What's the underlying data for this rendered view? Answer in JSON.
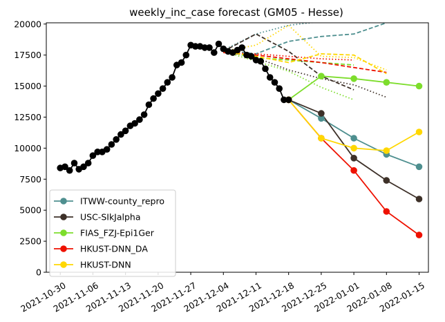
{
  "chart_data": {
    "type": "line",
    "title": "weekly_inc_case forecast (GM05 - Hesse)",
    "xlabel": "",
    "ylabel": "",
    "x_range": [
      "2021-10-27",
      "2022-01-17"
    ],
    "ylim": [
      0,
      20100
    ],
    "y_ticks": [
      0,
      2500,
      5000,
      7500,
      10000,
      12500,
      15000,
      17500,
      20000
    ],
    "y_tick_labels": [
      "0",
      "2500",
      "5000",
      "7500",
      "10000",
      "12500",
      "15000",
      "17500",
      "20000"
    ],
    "x_ticks": [
      "2021-10-30",
      "2021-11-06",
      "2021-11-13",
      "2021-11-20",
      "2021-11-27",
      "2021-12-04",
      "2021-12-11",
      "2021-12-18",
      "2021-12-25",
      "2022-01-01",
      "2022-01-08",
      "2022-01-15"
    ],
    "x_tick_labels": [
      "2021-10-30",
      "2021-11-06",
      "2021-11-13",
      "2021-11-20",
      "2021-11-27",
      "2021-12-04",
      "2021-12-11",
      "2021-12-18",
      "2021-12-25",
      "2022-01-01",
      "2022-01-08",
      "2022-01-15"
    ],
    "grid": false,
    "legend": {
      "position": "bottom-left",
      "entries": [
        "ITWW-county_repro",
        "USC-SIkJalpha",
        "FIAS_FZJ-Epi1Ger",
        "HKUST-DNN_DA",
        "HKUST-DNN"
      ]
    },
    "observed": {
      "color": "#000000",
      "x": [
        "2021-10-30",
        "2021-10-31",
        "2021-11-01",
        "2021-11-02",
        "2021-11-03",
        "2021-11-04",
        "2021-11-05",
        "2021-11-06",
        "2021-11-07",
        "2021-11-08",
        "2021-11-09",
        "2021-11-10",
        "2021-11-11",
        "2021-11-12",
        "2021-11-13",
        "2021-11-14",
        "2021-11-15",
        "2021-11-16",
        "2021-11-17",
        "2021-11-18",
        "2021-11-19",
        "2021-11-20",
        "2021-11-21",
        "2021-11-22",
        "2021-11-23",
        "2021-11-24",
        "2021-11-25",
        "2021-11-26",
        "2021-11-27",
        "2021-11-28",
        "2021-11-29",
        "2021-11-30",
        "2021-12-01",
        "2021-12-02",
        "2021-12-03",
        "2021-12-04",
        "2021-12-05",
        "2021-12-06",
        "2021-12-07",
        "2021-12-08",
        "2021-12-09",
        "2021-12-10",
        "2021-12-11",
        "2021-12-12",
        "2021-12-13",
        "2021-12-14",
        "2021-12-15",
        "2021-12-16",
        "2021-12-17",
        "2021-12-18"
      ],
      "y": [
        8400,
        8500,
        8200,
        8800,
        8300,
        8500,
        8800,
        9400,
        9700,
        9700,
        9900,
        10300,
        10700,
        11100,
        11400,
        11800,
        12000,
        12300,
        12700,
        13500,
        14000,
        14400,
        14800,
        15300,
        15700,
        16700,
        16900,
        17500,
        18300,
        18200,
        18200,
        18100,
        18100,
        17700,
        18400,
        18000,
        17800,
        17700,
        17900,
        18100,
        17500,
        17400,
        17100,
        17000,
        16400,
        15700,
        15300,
        14800,
        13900,
        13900
      ]
    },
    "series": [
      {
        "name": "ITWW-county_repro",
        "color": "#4e8f8f",
        "x": [
          "2021-12-18",
          "2021-12-25",
          "2022-01-01",
          "2022-01-08",
          "2022-01-15"
        ],
        "y": [
          13900,
          12400,
          10800,
          9500,
          8500
        ],
        "bands": [
          {
            "style": "dashed",
            "x": [
              "2021-12-04",
              "2021-12-11",
              "2021-12-18",
              "2021-12-25",
              "2022-01-01",
              "2022-01-08"
            ],
            "y": [
              17900,
              17600,
              18600,
              19000,
              19200,
              20100
            ]
          },
          {
            "style": "dotted",
            "x": [
              "2021-12-04",
              "2021-12-11",
              "2021-12-18",
              "2021-12-25"
            ],
            "y": [
              17900,
              19200,
              19900,
              20200
            ]
          }
        ]
      },
      {
        "name": "USC-SIkJalpha",
        "color": "#3d3028",
        "x": [
          "2021-12-18",
          "2021-12-25",
          "2022-01-01",
          "2022-01-08",
          "2022-01-15"
        ],
        "y": [
          13900,
          12800,
          9200,
          7400,
          5900
        ],
        "bands": [
          {
            "style": "dashed",
            "x": [
              "2021-12-04",
              "2021-12-11",
              "2021-12-18",
              "2021-12-25",
              "2022-01-01"
            ],
            "y": [
              17800,
              19200,
              17800,
              15800,
              14700
            ]
          },
          {
            "style": "dotted",
            "x": [
              "2021-12-04",
              "2021-12-11",
              "2021-12-18",
              "2021-12-25",
              "2022-01-01",
              "2022-01-08"
            ],
            "y": [
              17800,
              17300,
              16300,
              15600,
              15100,
              14100
            ]
          }
        ]
      },
      {
        "name": "FIAS_FZJ-Epi1Ger",
        "color": "#7ddd2c",
        "x": [
          "2021-12-18",
          "2021-12-25",
          "2022-01-01",
          "2022-01-08",
          "2022-01-15"
        ],
        "y": [
          13900,
          15800,
          15600,
          15300,
          15000
        ],
        "bands": [
          {
            "style": "dashed",
            "x": [
              "2021-12-04",
              "2021-12-11",
              "2021-12-18",
              "2021-12-25",
              "2022-01-01"
            ],
            "y": [
              17800,
              17300,
              17100,
              16900,
              16700
            ]
          },
          {
            "style": "dotted",
            "x": [
              "2021-12-04",
              "2021-12-11",
              "2021-12-18",
              "2021-12-25",
              "2022-01-01"
            ],
            "y": [
              17800,
              17000,
              16200,
              14900,
              13900
            ]
          }
        ]
      },
      {
        "name": "HKUST-DNN_DA",
        "color": "#ee1100",
        "x": [
          "2021-12-18",
          "2021-12-25",
          "2022-01-01",
          "2022-01-08",
          "2022-01-15"
        ],
        "y": [
          13900,
          10800,
          8200,
          4900,
          3000
        ],
        "bands": [
          {
            "style": "dashed",
            "x": [
              "2021-12-04",
              "2021-12-11",
              "2021-12-18",
              "2021-12-25",
              "2022-01-01",
              "2022-01-08"
            ],
            "y": [
              17700,
              17500,
              17200,
              16900,
              16500,
              16100
            ]
          },
          {
            "style": "dotted",
            "x": [
              "2021-12-04",
              "2021-12-11",
              "2021-12-18",
              "2021-12-25",
              "2022-01-01"
            ],
            "y": [
              17700,
              17600,
              17400,
              17200,
              17100
            ]
          }
        ]
      },
      {
        "name": "HKUST-DNN",
        "color": "#ffd700",
        "x": [
          "2021-12-18",
          "2021-12-25",
          "2022-01-01",
          "2022-01-08",
          "2022-01-15"
        ],
        "y": [
          13900,
          10800,
          10000,
          9800,
          11300
        ],
        "bands": [
          {
            "style": "dashed",
            "x": [
              "2021-12-04",
              "2021-12-11",
              "2021-12-18",
              "2021-12-25",
              "2022-01-01",
              "2022-01-08"
            ],
            "y": [
              17800,
              17400,
              16900,
              17600,
              17500,
              16000
            ]
          },
          {
            "style": "dotted",
            "x": [
              "2021-12-04",
              "2021-12-11",
              "2021-12-18",
              "2021-12-25",
              "2022-01-01",
              "2022-01-08"
            ],
            "y": [
              17800,
              18300,
              19900,
              17400,
              17300,
              16300
            ]
          }
        ]
      }
    ]
  }
}
